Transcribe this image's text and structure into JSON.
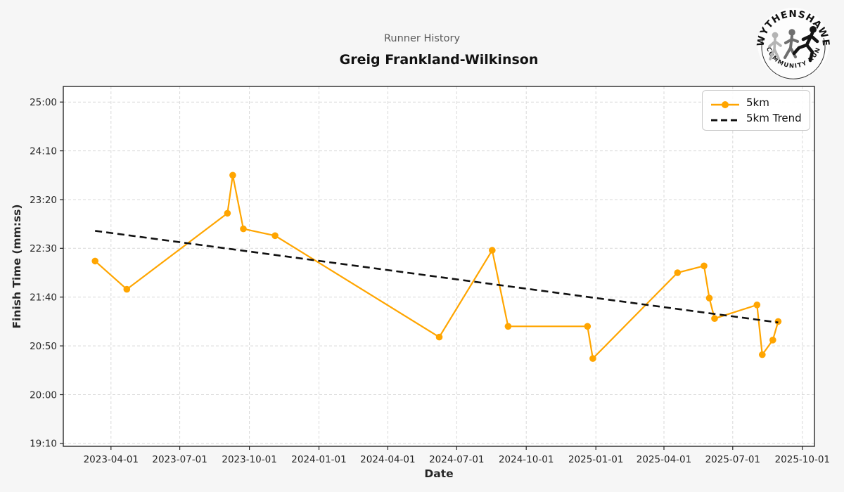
{
  "figure": {
    "background": "#f6f6f6"
  },
  "logo": {
    "top_text": "WYTHENSHAWE",
    "bottom_text": "COMMUNITY RUN"
  },
  "chart_data": {
    "type": "line",
    "suptitle": "Runner History",
    "title": "Greig Frankland-Wilkinson",
    "xlabel": "Date",
    "ylabel": "Finish Time (mm:ss)",
    "plot_bg": "#ffffff",
    "grid": true,
    "grid_color": "#d9d9d9",
    "axis_color": "#1a1a1a",
    "tick_label_color": "#262626",
    "xlim": [
      "2023-01-28",
      "2025-10-17"
    ],
    "ylim_mmss": [
      "19:07",
      "25:16"
    ],
    "x_ticks": [
      "2023-04-01",
      "2023-07-01",
      "2023-10-01",
      "2024-01-01",
      "2024-04-01",
      "2024-07-01",
      "2024-10-01",
      "2025-01-01",
      "2025-04-01",
      "2025-07-01",
      "2025-10-01"
    ],
    "y_ticks": [
      "19:10",
      "20:00",
      "20:50",
      "21:40",
      "22:30",
      "23:20",
      "24:10",
      "25:00"
    ],
    "legend": {
      "position": "upper right",
      "entries": [
        {
          "label": "5km",
          "color": "#FFA500",
          "style": "line-marker"
        },
        {
          "label": "5km Trend",
          "color": "#111111",
          "style": "dashed"
        }
      ]
    },
    "series": [
      {
        "name": "5km",
        "color": "#FFA500",
        "marker": "circle",
        "dashed": false,
        "points": [
          {
            "date": "2023-03-11",
            "time": "22:17"
          },
          {
            "date": "2023-04-22",
            "time": "21:48"
          },
          {
            "date": "2023-09-02",
            "time": "23:06"
          },
          {
            "date": "2023-09-09",
            "time": "23:45"
          },
          {
            "date": "2023-09-23",
            "time": "22:50"
          },
          {
            "date": "2023-11-04",
            "time": "22:43"
          },
          {
            "date": "2024-06-08",
            "time": "20:59"
          },
          {
            "date": "2024-08-17",
            "time": "22:28"
          },
          {
            "date": "2024-09-07",
            "time": "21:10"
          },
          {
            "date": "2024-12-21",
            "time": "21:10"
          },
          {
            "date": "2024-12-28",
            "time": "20:37"
          },
          {
            "date": "2025-04-19",
            "time": "22:05"
          },
          {
            "date": "2025-05-24",
            "time": "22:12"
          },
          {
            "date": "2025-05-31",
            "time": "21:39"
          },
          {
            "date": "2025-06-07",
            "time": "21:18"
          },
          {
            "date": "2025-08-02",
            "time": "21:32"
          },
          {
            "date": "2025-08-09",
            "time": "20:41"
          },
          {
            "date": "2025-08-23",
            "time": "20:56"
          },
          {
            "date": "2025-08-30",
            "time": "21:15"
          }
        ]
      },
      {
        "name": "5km Trend",
        "color": "#111111",
        "marker": null,
        "dashed": true,
        "points": [
          {
            "date": "2023-03-11",
            "time": "22:48"
          },
          {
            "date": "2025-08-30",
            "time": "21:14"
          }
        ]
      }
    ]
  }
}
